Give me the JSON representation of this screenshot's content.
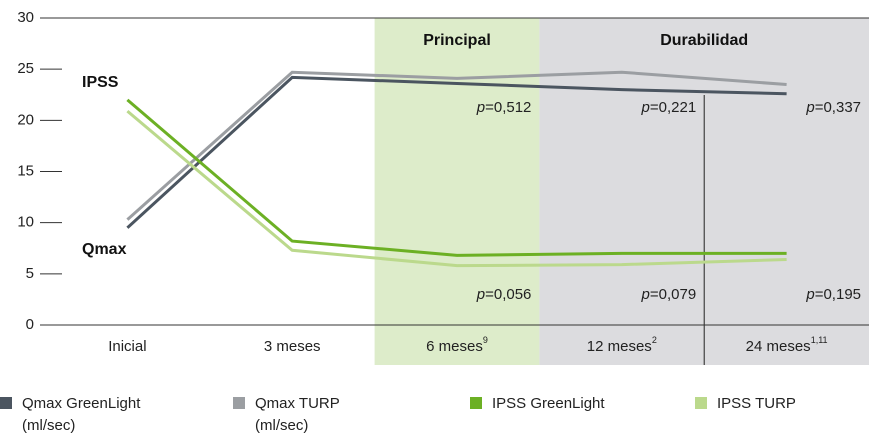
{
  "chart_data": {
    "type": "line",
    "categories": [
      "Inicial",
      "3 meses",
      "6 meses",
      "12 meses",
      "24 meses"
    ],
    "category_notes": [
      null,
      null,
      "9",
      "2",
      "1,11"
    ],
    "group_headers": {
      "principal": "Principal",
      "durability": "Durabilidad"
    },
    "series_labels": {
      "ipss": "IPSS",
      "qmax": "Qmax"
    },
    "qmax_p_values": [
      null,
      null,
      "p=0,512",
      "p=0,221",
      "p=0,337"
    ],
    "ipss_p_values": [
      null,
      null,
      "p=0,056",
      "p=0,079",
      "p=0,195"
    ],
    "ylim": [
      0,
      30
    ],
    "yticks": [
      0,
      5,
      10,
      15,
      20,
      25,
      30
    ],
    "series": [
      {
        "name": "Qmax GreenLight",
        "unit": "(ml/sec)",
        "color": "#4b5560",
        "values": [
          9.5,
          24.2,
          23.6,
          23.0,
          22.6
        ]
      },
      {
        "name": "Qmax TURP",
        "unit": "(ml/sec)",
        "color": "#9b9ea2",
        "values": [
          10.3,
          24.7,
          24.1,
          24.7,
          23.5
        ]
      },
      {
        "name": "IPSS GreenLight",
        "color": "#6cb024",
        "values": [
          22.0,
          8.2,
          6.8,
          7.0,
          7.0
        ]
      },
      {
        "name": "IPSS TURP",
        "color": "#bbd98c",
        "values": [
          20.9,
          7.3,
          5.8,
          5.9,
          6.4
        ]
      }
    ]
  }
}
